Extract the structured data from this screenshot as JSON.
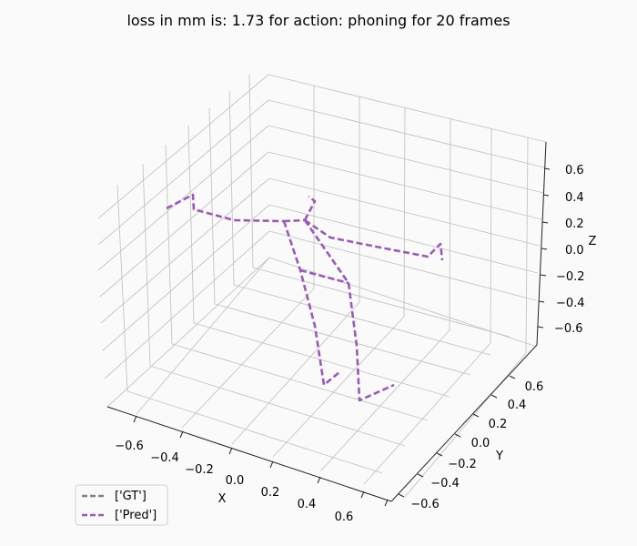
{
  "chart_data": {
    "type": "line3d",
    "title": "loss in mm is: 1.73 for action: phoning for 20 frames",
    "xlabel": "X",
    "ylabel": "Y",
    "zlabel": "Z",
    "x_ticks": [
      "−0.6",
      "−0.4",
      "−0.2",
      "0.0",
      "0.2",
      "0.4",
      "0.6"
    ],
    "y_ticks": [
      "−0.6",
      "−0.4",
      "−0.2",
      "0.0",
      "0.2",
      "0.4",
      "0.6"
    ],
    "z_ticks": [
      "−0.6",
      "−0.4",
      "−0.2",
      "0.0",
      "0.2",
      "0.4",
      "0.6"
    ],
    "legend": [
      {
        "label": "['GT']",
        "color": "#808080"
      },
      {
        "label": "['Pred']",
        "color": "#9b59b6"
      }
    ],
    "series": [
      {
        "name": "['GT']",
        "color": "#808080",
        "segments": []
      },
      {
        "name": "['Pred']",
        "color": "#9b59b6",
        "segments": [
          {
            "name": "left-arm",
            "points": [
              [
                183,
                229
              ],
              [
                212,
                214
              ],
              [
                213,
                230
              ],
              [
                257,
                242
              ],
              [
                312,
                243
              ]
            ]
          },
          {
            "name": "right-arm",
            "points": [
              [
                335,
                242
              ],
              [
                363,
                261
              ],
              [
                418,
                272
              ],
              [
                470,
                282
              ],
              [
                484,
                268
              ],
              [
                486,
                286
              ]
            ]
          },
          {
            "name": "head",
            "points": [
              [
                335,
                242
              ],
              [
                346,
                221
              ],
              [
                339,
                216
              ]
            ]
          },
          {
            "name": "spine",
            "points": [
              [
                312,
                243
              ],
              [
                335,
                242
              ]
            ]
          },
          {
            "name": "left-leg",
            "points": [
              [
                312,
                243
              ],
              [
                330,
                297
              ],
              [
                346,
                358
              ],
              [
                356,
                423
              ],
              [
                373,
                409
              ]
            ]
          },
          {
            "name": "right-leg",
            "points": [
              [
                335,
                242
              ],
              [
                383,
                311
              ],
              [
                392,
                380
              ],
              [
                395,
                440
              ],
              [
                433,
                423
              ]
            ]
          },
          {
            "name": "pelvis",
            "points": [
              [
                330,
                297
              ],
              [
                383,
                311
              ]
            ]
          }
        ]
      }
    ]
  }
}
